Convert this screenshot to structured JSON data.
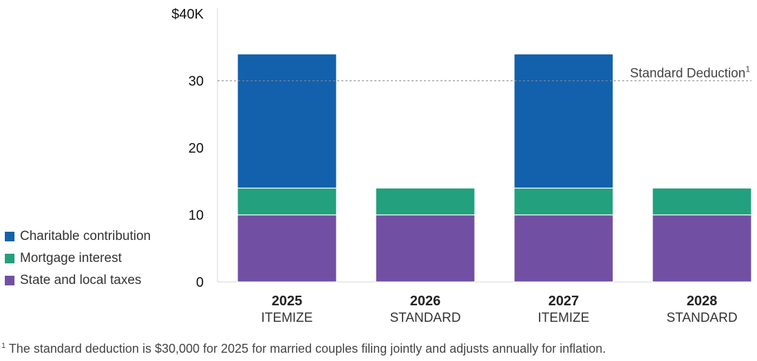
{
  "chart_data": {
    "type": "bar",
    "stacked": true,
    "categories": [
      "2025",
      "2026",
      "2027",
      "2028"
    ],
    "category_sublabels": [
      "ITEMIZE",
      "STANDARD",
      "ITEMIZE",
      "STANDARD"
    ],
    "series": [
      {
        "name": "State and local taxes",
        "color": "#7150a4",
        "values": [
          10,
          10,
          10,
          10
        ]
      },
      {
        "name": "Mortgage interest",
        "color": "#23a07d",
        "values": [
          4,
          4,
          4,
          4
        ]
      },
      {
        "name": "Charitable contribution",
        "color": "#1361ac",
        "values": [
          20,
          0,
          20,
          0
        ]
      }
    ],
    "ylim": [
      0,
      40
    ],
    "yticks": [
      0,
      10,
      20,
      30,
      40
    ],
    "ytick_labels": [
      "0",
      "10",
      "20",
      "30",
      "$40K"
    ],
    "reference_line": {
      "value": 30,
      "label": "Standard Deduction",
      "marker": "1"
    },
    "legend_order": [
      "Charitable contribution",
      "Mortgage interest",
      "State and local taxes"
    ],
    "legend_placement": "left",
    "footnote": {
      "marker": "1",
      "text": "The standard deduction is $30,000 for 2025 for married couples filing jointly and adjusts annually for inflation."
    }
  }
}
